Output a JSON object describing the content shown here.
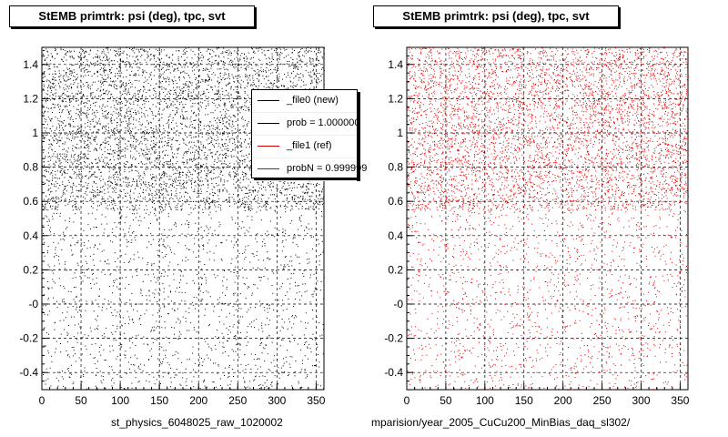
{
  "panels": [
    {
      "title": "StEMB primtrk: psi (deg), tpc, svt",
      "footer": "st_physics_6048025_raw_1020002"
    },
    {
      "title": "StEMB primtrk: psi (deg), tpc, svt",
      "footer": "mparision/year_2005_CuCu200_MinBias_daq_sl302/"
    }
  ],
  "legend": {
    "items": [
      {
        "label": "_file0 (new)",
        "color": "#000000"
      },
      {
        "label": "prob = 1.000000",
        "color": "#000000"
      },
      {
        "label": "_file1 (ref)",
        "color": "#cc0000"
      },
      {
        "label": "probN = 0.999999",
        "color": "#cc0000"
      }
    ]
  },
  "colors": {
    "new": "#000000",
    "ref": "#dd0000"
  },
  "chart_data": [
    {
      "type": "scatter",
      "title": "StEMB primtrk: psi (deg), tpc, svt",
      "xlabel": "",
      "ylabel": "",
      "xlim": [
        0,
        360
      ],
      "ylim": [
        -0.5,
        1.5
      ],
      "xticks": [
        0,
        50,
        100,
        150,
        200,
        250,
        300,
        350
      ],
      "yticks": [
        "-0.4",
        "-0.2",
        "-0",
        "0.2",
        "0.4",
        "0.6",
        "0.8",
        "1",
        "1.2",
        "1.4"
      ],
      "ytick_values": [
        -0.4,
        -0.2,
        0,
        0.2,
        0.4,
        0.6,
        0.8,
        1.0,
        1.2,
        1.4
      ],
      "grid": true,
      "series": [
        {
          "name": "_file0 (new)",
          "color": "#000000",
          "density": {
            "upper_band": [
              0.55,
              1.5
            ],
            "lower_band": [
              -0.5,
              0.55
            ],
            "upper_points": 5200,
            "lower_points": 1500
          }
        }
      ]
    },
    {
      "type": "scatter",
      "title": "StEMB primtrk: psi (deg), tpc, svt",
      "xlabel": "",
      "ylabel": "",
      "xlim": [
        0,
        360
      ],
      "ylim": [
        -0.5,
        1.5
      ],
      "xticks": [
        0,
        50,
        100,
        150,
        200,
        250,
        300,
        350
      ],
      "yticks": [
        "-0.4",
        "-0.2",
        "-0",
        "0.2",
        "0.4",
        "0.6",
        "0.8",
        "1",
        "1.2",
        "1.4"
      ],
      "ytick_values": [
        -0.4,
        -0.2,
        0,
        0.2,
        0.4,
        0.6,
        0.8,
        1.0,
        1.2,
        1.4
      ],
      "grid": true,
      "series": [
        {
          "name": "_file1 (ref)",
          "color": "#dd0000",
          "density": {
            "upper_band": [
              0.55,
              1.5
            ],
            "lower_band": [
              -0.5,
              0.55
            ],
            "upper_points": 5200,
            "lower_points": 1500
          }
        }
      ]
    }
  ]
}
